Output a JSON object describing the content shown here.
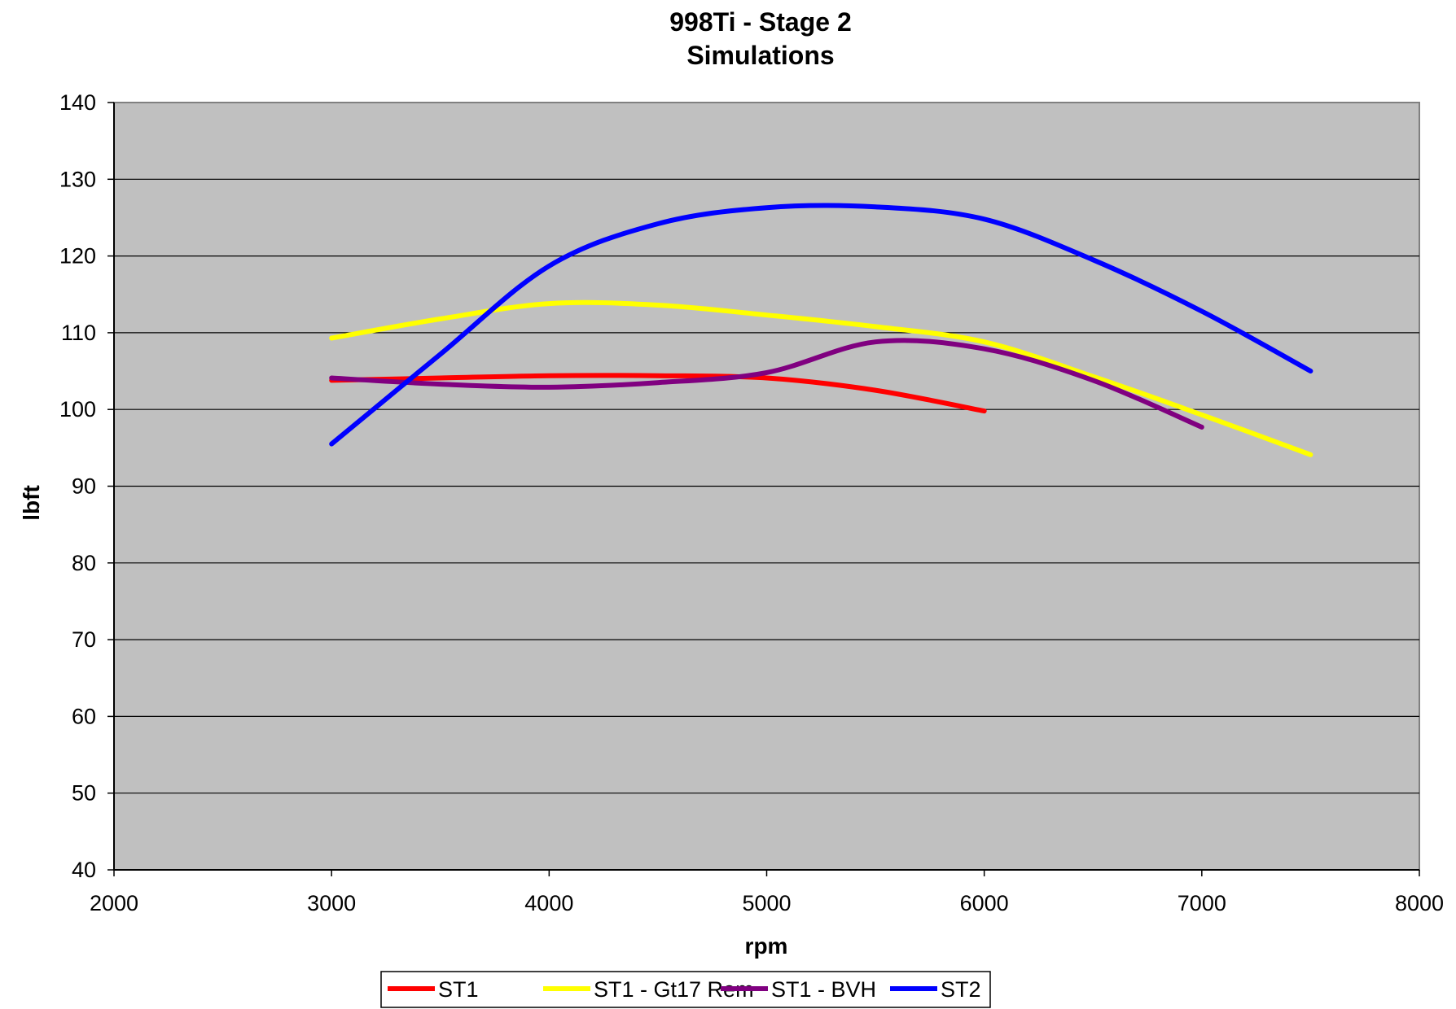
{
  "chart_data": {
    "type": "line",
    "title": "998Ti - Stage 2",
    "subtitle": "Simulations",
    "xlabel": "rpm",
    "ylabel": "lbft",
    "xlim": [
      2000,
      8000
    ],
    "ylim": [
      40,
      140
    ],
    "x_ticks": [
      "2000",
      "3000",
      "4000",
      "5000",
      "6000",
      "7000",
      "8000"
    ],
    "y_ticks": [
      "140",
      "130",
      "120",
      "110",
      "100",
      "90",
      "80",
      "70",
      "60",
      "50",
      "40"
    ],
    "grid": "horizontal",
    "legend_position": "bottom",
    "plot_background": "#c0c0c0",
    "series": [
      {
        "name": "ST1",
        "color": "#ff0000",
        "points": [
          [
            3000,
            103.8
          ],
          [
            3500,
            104.1
          ],
          [
            4000,
            104.4
          ],
          [
            4500,
            104.4
          ],
          [
            5000,
            104.1
          ],
          [
            5500,
            102.5
          ],
          [
            6000,
            99.8
          ]
        ]
      },
      {
        "name": "ST1 - Gt17 Rem",
        "color": "#ffff00",
        "points": [
          [
            3000,
            109.3
          ],
          [
            3500,
            111.8
          ],
          [
            4000,
            113.8
          ],
          [
            4500,
            113.6
          ],
          [
            5000,
            112.3
          ],
          [
            5500,
            110.8
          ],
          [
            6000,
            108.8
          ],
          [
            6500,
            104.3
          ],
          [
            7000,
            99.3
          ],
          [
            7500,
            94.1
          ]
        ]
      },
      {
        "name": "ST1 - BVH",
        "color": "#800080",
        "points": [
          [
            3000,
            104.1
          ],
          [
            3500,
            103.3
          ],
          [
            4000,
            102.9
          ],
          [
            4500,
            103.5
          ],
          [
            5000,
            104.8
          ],
          [
            5500,
            108.8
          ],
          [
            6000,
            107.9
          ],
          [
            6500,
            103.8
          ],
          [
            7000,
            97.7
          ]
        ]
      },
      {
        "name": "ST2",
        "color": "#0000ff",
        "points": [
          [
            3000,
            95.5
          ],
          [
            3500,
            107.2
          ],
          [
            4000,
            118.7
          ],
          [
            4500,
            124.2
          ],
          [
            5000,
            126.3
          ],
          [
            5500,
            126.4
          ],
          [
            6000,
            124.8
          ],
          [
            6500,
            119.5
          ],
          [
            7000,
            112.8
          ],
          [
            7500,
            105.0
          ]
        ]
      }
    ]
  }
}
